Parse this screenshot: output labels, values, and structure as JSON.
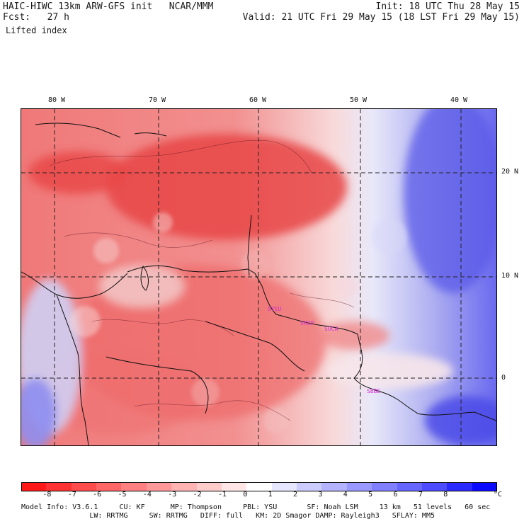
{
  "header": {
    "model_title": "HAIC-HIWC 13km ARW-GFS init   NCAR/MMM",
    "forecast_hour": "Fcst:   27 h",
    "field_name": "Lifted index",
    "init_time": "Init: 18 UTC Thu 28 May 15",
    "valid_time": "Valid: 21 UTC Fri 29 May 15 (18 LST Fri 29 May 15)"
  },
  "map": {
    "lon_labels": [
      "80 W",
      "70 W",
      "60 W",
      "50 W",
      "40 W"
    ],
    "lat_labels": [
      "20 N",
      "10 N",
      "0"
    ],
    "city_labels": [
      "SYEU",
      "SMJP",
      "SOCA",
      "SBBE"
    ],
    "field_colors": {
      "strong_negative": "#e63c3c",
      "moderate_negative": "#f07a7a",
      "weak_negative": "#f8c0c0",
      "near_zero": "#f4f0fa",
      "weak_positive": "#b8b8f0",
      "moderate_positive": "#7a7af0",
      "strong_positive": "#3030e8"
    }
  },
  "colorbar": {
    "unit": "°C",
    "ticks": [
      "-8",
      "-7",
      "-6",
      "-5",
      "-4",
      "-3",
      "-2",
      "-1",
      "0",
      "1",
      "2",
      "3",
      "4",
      "5",
      "6",
      "7",
      "8"
    ],
    "colors": [
      "#ff1a1a",
      "#ff3333",
      "#ff4d4d",
      "#ff6666",
      "#ff8080",
      "#ff9999",
      "#ffb3b3",
      "#ffcccc",
      "#ffe6e6",
      "#ffffff",
      "#e6e6ff",
      "#ccccff",
      "#b3b3ff",
      "#9999ff",
      "#8080ff",
      "#6666ff",
      "#4d4dff",
      "#2a2aff",
      "#0a0aff"
    ]
  },
  "model_info": {
    "line1": "Model Info: V3.6.1     CU: KF      MP: Thompson     PBL: YSU       SF: Noah LSM     13 km   51 levels   60 sec",
    "line2": "                LW: RRTMG     SW: RRTMG   DIFF: full   KM: 2D Smagor DAMP: Rayleigh3   SFLAY: MM5"
  }
}
